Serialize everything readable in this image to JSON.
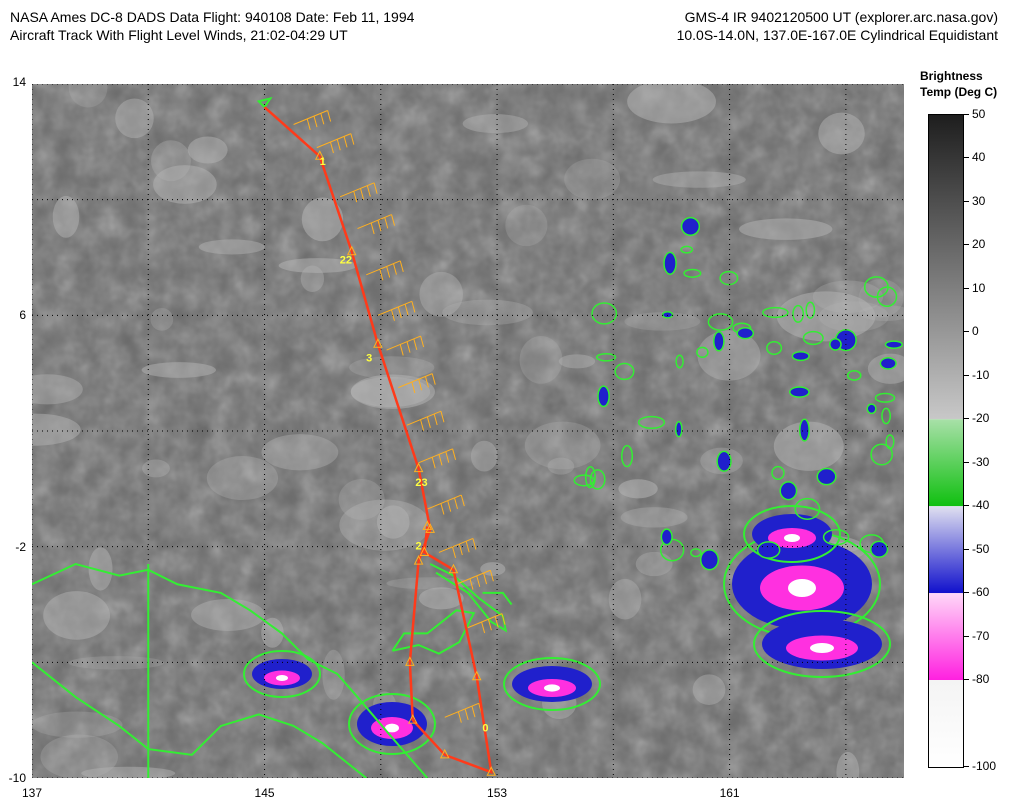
{
  "header": {
    "left_line1": "NASA Ames DC-8 DADS Data  Flight: 940108  Date: Feb 11, 1994",
    "left_line2": "Aircraft Track With Flight Level Winds, 21:02-04:29 UT",
    "right_line1": "GMS-4 IR 9402120500 UT (explorer.arc.nasa.gov)",
    "right_line2": "10.0S-14.0N, 137.0E-167.0E Cylindrical Equidistant"
  },
  "map": {
    "lon_range": [
      137,
      167
    ],
    "lat_range": [
      -10,
      14
    ],
    "lon_ticks": [
      137,
      145,
      153,
      161
    ],
    "lat_ticks": [
      14,
      6,
      -2,
      -10
    ],
    "lon_labels": [
      "137",
      "145",
      "153",
      "161"
    ],
    "lat_labels": [
      "14",
      "6",
      "-2",
      "-10"
    ],
    "background_color": "#6e6e6e",
    "track_color": "#ff3a1a",
    "wind_color": "#ffb020",
    "coast_color": "#33ee33",
    "cold_cloud_colors": [
      "#7d7dc8",
      "#2020cc",
      "#ff30e0",
      "#ffffff"
    ],
    "flight_track": {
      "points": [
        {
          "lon": 145.0,
          "lat": 13.2
        },
        {
          "lon": 146.9,
          "lat": 11.5
        },
        {
          "lon": 148.0,
          "lat": 8.2
        },
        {
          "lon": 148.9,
          "lat": 5.0
        },
        {
          "lon": 150.3,
          "lat": 0.7
        },
        {
          "lon": 150.7,
          "lat": -1.4
        },
        {
          "lon": 150.3,
          "lat": -2.5
        },
        {
          "lon": 150.0,
          "lat": -6.0
        },
        {
          "lon": 150.1,
          "lat": -8.0
        },
        {
          "lon": 151.2,
          "lat": -9.2
        },
        {
          "lon": 152.8,
          "lat": -9.8
        },
        {
          "lon": 152.3,
          "lat": -6.5
        },
        {
          "lon": 151.5,
          "lat": -2.8
        },
        {
          "lon": 150.5,
          "lat": -2.2
        },
        {
          "lon": 150.6,
          "lat": -1.3
        }
      ],
      "hour_labels": [
        {
          "text": "1",
          "lon": 147.0,
          "lat": 11.2
        },
        {
          "text": "22",
          "lon": 147.8,
          "lat": 7.8
        },
        {
          "text": "3",
          "lon": 148.6,
          "lat": 4.4
        },
        {
          "text": "23",
          "lon": 150.4,
          "lat": 0.1
        },
        {
          "text": "2",
          "lon": 150.3,
          "lat": -2.1
        },
        {
          "text": "0",
          "lon": 152.6,
          "lat": -8.4
        }
      ],
      "wind_barbs": [
        {
          "lon": 146.0,
          "lat": 12.6
        },
        {
          "lon": 146.8,
          "lat": 11.8
        },
        {
          "lon": 147.6,
          "lat": 10.1
        },
        {
          "lon": 148.2,
          "lat": 9.0
        },
        {
          "lon": 148.5,
          "lat": 7.4
        },
        {
          "lon": 148.9,
          "lat": 6.0
        },
        {
          "lon": 149.2,
          "lat": 4.8
        },
        {
          "lon": 149.6,
          "lat": 3.5
        },
        {
          "lon": 149.9,
          "lat": 2.2
        },
        {
          "lon": 150.3,
          "lat": 0.9
        },
        {
          "lon": 150.6,
          "lat": -0.7
        },
        {
          "lon": 151.0,
          "lat": -2.2
        },
        {
          "lon": 151.6,
          "lat": -3.3
        },
        {
          "lon": 152.0,
          "lat": -4.8
        },
        {
          "lon": 151.2,
          "lat": -7.9
        }
      ]
    }
  },
  "colorbar": {
    "title_line1": "Brightness",
    "title_line2": "Temp (Deg C)",
    "ticks": [
      50,
      40,
      30,
      20,
      10,
      0,
      -10,
      -20,
      -30,
      -40,
      -50,
      -60,
      -70,
      -80,
      -100
    ],
    "tick_labels": [
      "50",
      "40",
      "30",
      "20",
      "10",
      "0",
      "-10",
      "-20",
      "-30",
      "-40",
      "-50",
      "-60",
      "-70",
      "-80",
      "-100"
    ],
    "segments": [
      {
        "from": 50,
        "to": -20,
        "top_color": "#1e1e1e",
        "bottom_color": "#c8c8c8"
      },
      {
        "from": -20,
        "to": -40,
        "top_color": "#a8e0a8",
        "bottom_color": "#10c010"
      },
      {
        "from": -40,
        "to": -60,
        "top_color": "#e0e0f0",
        "bottom_color": "#1010cc"
      },
      {
        "from": -60,
        "to": -80,
        "top_color": "#ffd8f8",
        "bottom_color": "#ff20e0"
      },
      {
        "from": -80,
        "to": -100,
        "top_color": "#f4f4f4",
        "bottom_color": "#ffffff"
      }
    ]
  }
}
